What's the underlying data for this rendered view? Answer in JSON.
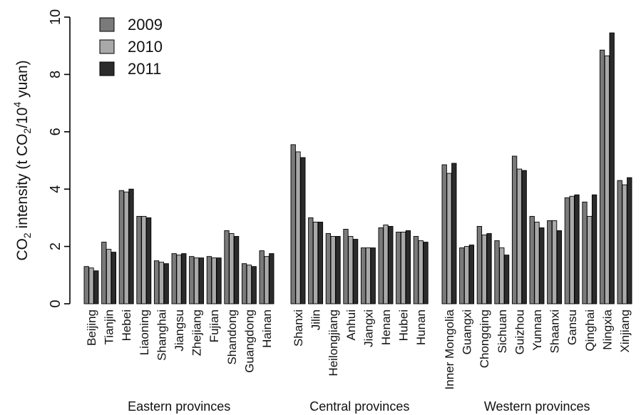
{
  "chart_data": {
    "type": "bar",
    "ylabel": "CO₂ intensity (t CO₂/10⁴ yuan)",
    "ylabel_parts": [
      "CO",
      "2",
      " intensity (t CO",
      "2",
      "/10",
      "4",
      " yuan)"
    ],
    "ylim": [
      0,
      10
    ],
    "yticks": [
      0,
      2,
      4,
      6,
      8,
      10
    ],
    "ytick_labels": [
      "0",
      "2",
      "4",
      "6",
      "8",
      "10"
    ],
    "legend_position": "top-left",
    "grid": false,
    "series": [
      {
        "name": "2009",
        "color": "#7a7a7a"
      },
      {
        "name": "2010",
        "color": "#a9a9a9"
      },
      {
        "name": "2011",
        "color": "#2b2b2b"
      }
    ],
    "groups": [
      {
        "name": "Eastern provinces",
        "categories": [
          {
            "name": "Beijing",
            "values": [
              1.3,
              1.25,
              1.15
            ]
          },
          {
            "name": "Tianjin",
            "values": [
              2.15,
              1.9,
              1.8
            ]
          },
          {
            "name": "Hebei",
            "values": [
              3.95,
              3.9,
              4.0
            ]
          },
          {
            "name": "Liaoning",
            "values": [
              3.05,
              3.05,
              3.0
            ]
          },
          {
            "name": "Shanghai",
            "values": [
              1.5,
              1.45,
              1.4
            ]
          },
          {
            "name": "Jiangsu",
            "values": [
              1.75,
              1.7,
              1.75
            ]
          },
          {
            "name": "Zhejiang",
            "values": [
              1.65,
              1.6,
              1.6
            ]
          },
          {
            "name": "Fujian",
            "values": [
              1.65,
              1.6,
              1.6
            ]
          },
          {
            "name": "Shandong",
            "values": [
              2.55,
              2.45,
              2.35
            ]
          },
          {
            "name": "Guangdong",
            "values": [
              1.4,
              1.35,
              1.3
            ]
          },
          {
            "name": "Hainan",
            "values": [
              1.85,
              1.65,
              1.75
            ]
          }
        ]
      },
      {
        "name": "Central provinces",
        "categories": [
          {
            "name": "Shanxi",
            "values": [
              5.55,
              5.3,
              5.1
            ]
          },
          {
            "name": "Jilin",
            "values": [
              3.0,
              2.85,
              2.85
            ]
          },
          {
            "name": "Heilongjiang",
            "values": [
              2.45,
              2.35,
              2.35
            ]
          },
          {
            "name": "Anhui",
            "values": [
              2.6,
              2.35,
              2.25
            ]
          },
          {
            "name": "Jiangxi",
            "values": [
              1.95,
              1.95,
              1.95
            ]
          },
          {
            "name": "Henan",
            "values": [
              2.65,
              2.75,
              2.7
            ]
          },
          {
            "name": "Hubei",
            "values": [
              2.5,
              2.5,
              2.55
            ]
          },
          {
            "name": "Hunan",
            "values": [
              2.35,
              2.2,
              2.15
            ]
          }
        ]
      },
      {
        "name": "Western provinces",
        "categories": [
          {
            "name": "Inner Mongolia",
            "values": [
              4.85,
              4.55,
              4.9
            ]
          },
          {
            "name": "Guangxi",
            "values": [
              1.95,
              2.0,
              2.05
            ]
          },
          {
            "name": "Chongqing",
            "values": [
              2.7,
              2.4,
              2.45
            ]
          },
          {
            "name": "Sichuan",
            "values": [
              2.2,
              1.95,
              1.7
            ]
          },
          {
            "name": "Guizhou",
            "values": [
              5.15,
              4.7,
              4.65
            ]
          },
          {
            "name": "Yunnan",
            "values": [
              3.05,
              2.85,
              2.65
            ]
          },
          {
            "name": "Shaanxi",
            "values": [
              2.9,
              2.9,
              2.55
            ]
          },
          {
            "name": "Gansu",
            "values": [
              3.7,
              3.75,
              3.8
            ]
          },
          {
            "name": "Qinghai",
            "values": [
              3.55,
              3.05,
              3.8
            ]
          },
          {
            "name": "Ningxia",
            "values": [
              8.85,
              8.65,
              9.45
            ]
          },
          {
            "name": "Xinjiang",
            "values": [
              4.3,
              4.15,
              4.4
            ]
          }
        ]
      }
    ]
  }
}
